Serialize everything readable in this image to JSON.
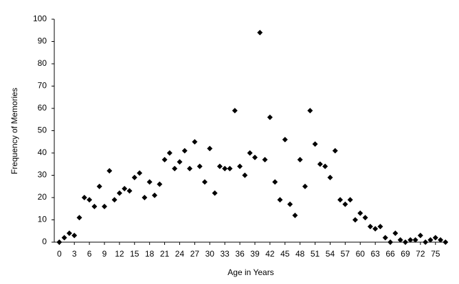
{
  "chart_data": {
    "type": "scatter",
    "x_label": "Age in Years",
    "y_label": "Frequency of Memories",
    "x": [
      0,
      1,
      2,
      3,
      4,
      5,
      6,
      7,
      8,
      9,
      10,
      11,
      12,
      13,
      14,
      15,
      16,
      17,
      18,
      19,
      20,
      21,
      22,
      23,
      24,
      25,
      26,
      27,
      28,
      29,
      30,
      31,
      32,
      33,
      34,
      35,
      36,
      37,
      38,
      39,
      40,
      41,
      42,
      43,
      44,
      45,
      46,
      47,
      48,
      49,
      50,
      51,
      52,
      53,
      54,
      55,
      56,
      57,
      58,
      59,
      60,
      61,
      62,
      63,
      64,
      65,
      66,
      67,
      68,
      69,
      70,
      71,
      72,
      73,
      74,
      75,
      76,
      77
    ],
    "values": [
      0,
      2,
      4,
      3,
      11,
      20,
      19,
      16,
      25,
      16,
      32,
      19,
      22,
      24,
      23,
      29,
      31,
      20,
      27,
      21,
      26,
      37,
      40,
      33,
      36,
      41,
      33,
      45,
      34,
      27,
      42,
      22,
      34,
      33,
      33,
      59,
      34,
      30,
      40,
      38,
      94,
      37,
      56,
      27,
      19,
      46,
      17,
      12,
      37,
      25,
      59,
      44,
      35,
      34,
      29,
      41,
      19,
      17,
      19,
      10,
      13,
      11,
      7,
      6,
      7,
      2,
      0,
      4,
      1,
      0,
      1,
      1,
      3,
      0,
      1,
      2,
      1,
      0
    ],
    "color": "#000000",
    "marker": "diamond",
    "xlim": [
      -1,
      77.5
    ],
    "ylim": [
      0,
      100
    ],
    "xticks": [
      0,
      3,
      6,
      9,
      12,
      15,
      18,
      21,
      24,
      27,
      30,
      33,
      36,
      39,
      42,
      45,
      48,
      51,
      54,
      57,
      60,
      63,
      66,
      69,
      72,
      75
    ],
    "yticks": [
      0,
      10,
      20,
      30,
      40,
      50,
      60,
      70,
      80,
      90,
      100
    ],
    "grid": false
  }
}
